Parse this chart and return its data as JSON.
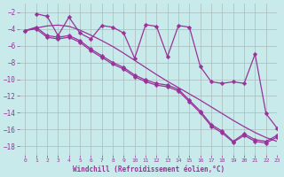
{
  "background_color": "#c8eaea",
  "grid_color": "#aabbbb",
  "line_color": "#993399",
  "xlabel": "Windchill (Refroidissement éolien,°C)",
  "xlim": [
    -0.5,
    23
  ],
  "ylim": [
    -19,
    -1
  ],
  "yticks": [
    -18,
    -16,
    -14,
    -12,
    -10,
    -8,
    -6,
    -4,
    -2
  ],
  "xticks": [
    0,
    1,
    2,
    3,
    4,
    5,
    6,
    7,
    8,
    9,
    10,
    11,
    12,
    13,
    14,
    15,
    16,
    17,
    18,
    19,
    20,
    21,
    22,
    23
  ],
  "smooth_x": [
    0,
    1,
    2,
    3,
    4,
    5,
    6,
    7,
    8,
    9,
    10,
    11,
    12,
    13,
    14,
    15,
    16,
    17,
    18,
    19,
    20,
    21,
    22,
    23
  ],
  "smooth_y": [
    -4.2,
    -3.9,
    -3.65,
    -3.55,
    -3.7,
    -4.15,
    -4.75,
    -5.4,
    -6.1,
    -6.9,
    -7.75,
    -8.6,
    -9.45,
    -10.25,
    -11.0,
    -11.75,
    -12.5,
    -13.3,
    -14.1,
    -14.9,
    -15.65,
    -16.35,
    -16.95,
    -17.4
  ],
  "line_a_x": [
    0,
    1,
    2,
    3,
    4,
    5,
    6,
    7,
    8,
    9,
    10,
    11,
    12,
    13,
    14,
    15,
    16,
    17,
    18,
    19,
    20,
    21,
    22,
    23
  ],
  "line_a_y": [
    -4.2,
    -3.8,
    -4.8,
    -5.0,
    -4.8,
    -5.4,
    -6.4,
    -7.2,
    -8.0,
    -8.6,
    -9.5,
    -10.1,
    -10.5,
    -10.7,
    -11.2,
    -12.5,
    -13.8,
    -15.4,
    -16.2,
    -17.4,
    -16.5,
    -17.2,
    -17.4,
    -16.7
  ],
  "line_b_x": [
    0,
    1,
    2,
    3,
    4,
    5,
    6,
    7,
    8,
    9,
    10,
    11,
    12,
    13,
    14,
    15,
    16,
    17,
    18,
    19,
    20,
    21,
    22,
    23
  ],
  "line_b_y": [
    -4.2,
    -4.0,
    -5.0,
    -5.2,
    -5.0,
    -5.6,
    -6.6,
    -7.4,
    -8.2,
    -8.8,
    -9.7,
    -10.3,
    -10.7,
    -10.9,
    -11.4,
    -12.7,
    -14.0,
    -15.6,
    -16.4,
    -17.5,
    -16.7,
    -17.4,
    -17.6,
    -16.9
  ],
  "line_spike_x": [
    1,
    2,
    3,
    4,
    5,
    6,
    7,
    8,
    9,
    10,
    11,
    12,
    13,
    14,
    15,
    16,
    17,
    18,
    19,
    20,
    21,
    22,
    23
  ],
  "line_spike_y": [
    -2.2,
    -2.5,
    -4.8,
    -2.6,
    -4.5,
    -5.2,
    -3.6,
    -3.8,
    -4.5,
    -7.5,
    -3.5,
    -3.7,
    -7.3,
    -3.6,
    -3.8,
    -8.5,
    -10.3,
    -10.5,
    -10.3,
    -10.5,
    -7.0,
    -14.1,
    -15.8
  ]
}
